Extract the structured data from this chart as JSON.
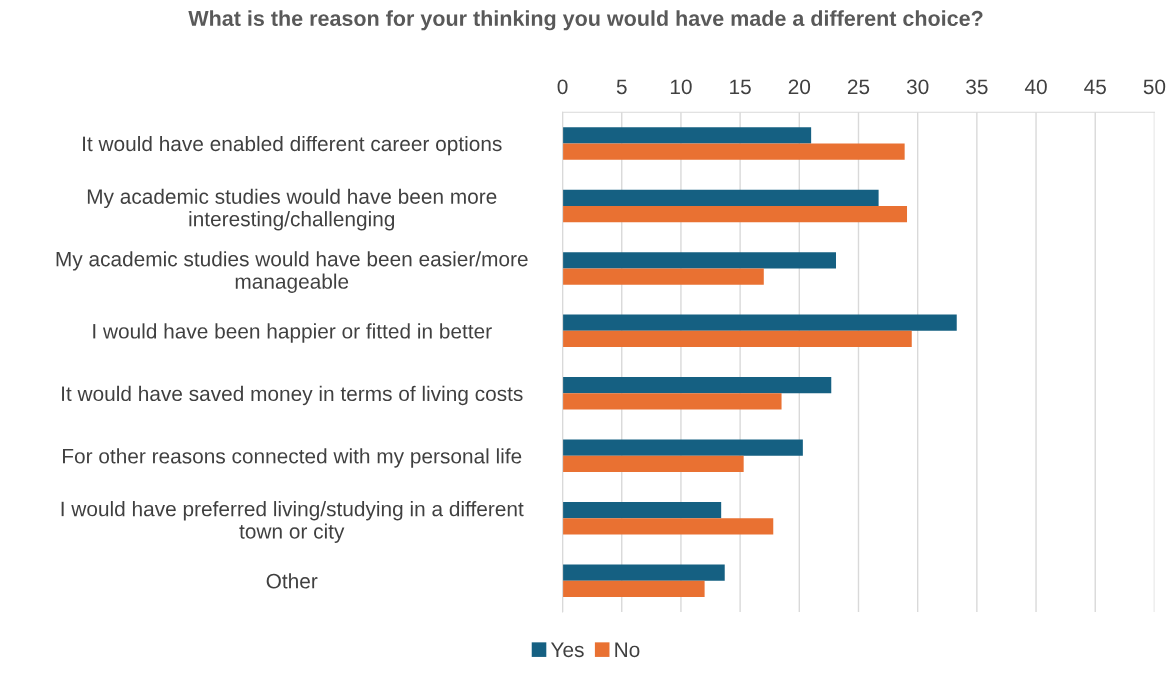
{
  "chart_data": {
    "type": "bar",
    "orientation": "horizontal",
    "title": "What is the reason for your thinking you would have made a different choice?",
    "categories": [
      "It would have enabled different career options",
      "My academic studies would have been more\ninteresting/challenging",
      "My academic studies would have been easier/more\nmanageable",
      "I would have been happier or fitted in better",
      "It would have saved money in terms of living costs",
      "For other reasons connected with my personal life",
      "I would have preferred living/studying in a different\ntown or city",
      "Other"
    ],
    "series": [
      {
        "name": "Yes",
        "color": "#156082",
        "values": [
          21,
          26.7,
          23.1,
          33.3,
          22.7,
          20.3,
          13.4,
          13.7
        ]
      },
      {
        "name": "No",
        "color": "#e97132",
        "values": [
          28.9,
          29.1,
          17,
          29.5,
          18.5,
          15.3,
          17.8,
          12
        ]
      }
    ],
    "xlim": [
      0,
      50
    ],
    "xticks": [
      0,
      5,
      10,
      15,
      20,
      25,
      30,
      35,
      40,
      45,
      50
    ],
    "grid": "x",
    "legend": "bottom"
  }
}
